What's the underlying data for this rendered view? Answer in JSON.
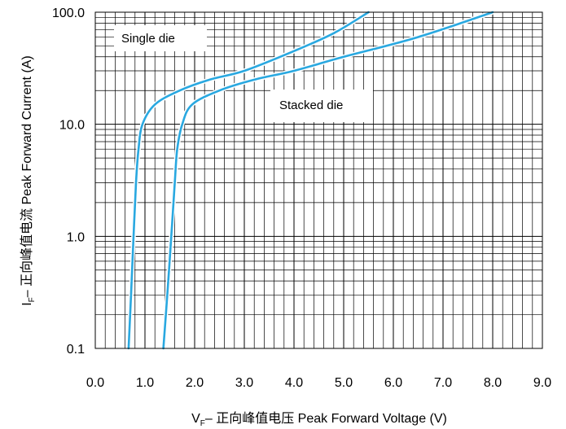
{
  "chart_data": {
    "type": "line",
    "xlabel_prefix": "V",
    "xlabel_sub": "F",
    "xlabel_text": "– 正向峰值电压 Peak Forward Voltage (V)",
    "ylabel_prefix": "I",
    "ylabel_sub": "F",
    "ylabel_text": "– 正向峰值电流 Peak Forward Current (A)",
    "x_ticks": [
      "0.0",
      "1.0",
      "2.0",
      "3.0",
      "4.0",
      "5.0",
      "6.0",
      "7.0",
      "8.0",
      "9.0"
    ],
    "y_ticks": [
      "0.1",
      "1.0",
      "10.0",
      "100.0"
    ],
    "xlim": [
      0,
      9
    ],
    "ylim": [
      0.1,
      100
    ],
    "y_scale": "log",
    "grid": true,
    "series": [
      {
        "name": "Single die",
        "color": "#29a8e0",
        "points": [
          [
            0.67,
            0.1
          ],
          [
            0.72,
            0.3
          ],
          [
            0.77,
            1.0
          ],
          [
            0.82,
            3.0
          ],
          [
            0.87,
            6.0
          ],
          [
            0.95,
            10.0
          ],
          [
            1.2,
            15.0
          ],
          [
            1.7,
            20.0
          ],
          [
            2.3,
            25.0
          ],
          [
            3.0,
            30.0
          ],
          [
            4.0,
            45.0
          ],
          [
            4.8,
            65.0
          ],
          [
            5.5,
            100.0
          ]
        ]
      },
      {
        "name": "Stacked die",
        "color": "#29a8e0",
        "points": [
          [
            1.37,
            0.1
          ],
          [
            1.45,
            0.3
          ],
          [
            1.53,
            1.0
          ],
          [
            1.6,
            3.0
          ],
          [
            1.65,
            6.0
          ],
          [
            1.75,
            10.0
          ],
          [
            1.95,
            15.0
          ],
          [
            2.5,
            20.0
          ],
          [
            3.2,
            25.0
          ],
          [
            4.0,
            30.0
          ],
          [
            5.0,
            40.0
          ],
          [
            6.5,
            60.0
          ],
          [
            8.0,
            100.0
          ]
        ]
      }
    ],
    "annotations": [
      {
        "text": "Single die"
      },
      {
        "text": "Stacked die"
      }
    ]
  }
}
